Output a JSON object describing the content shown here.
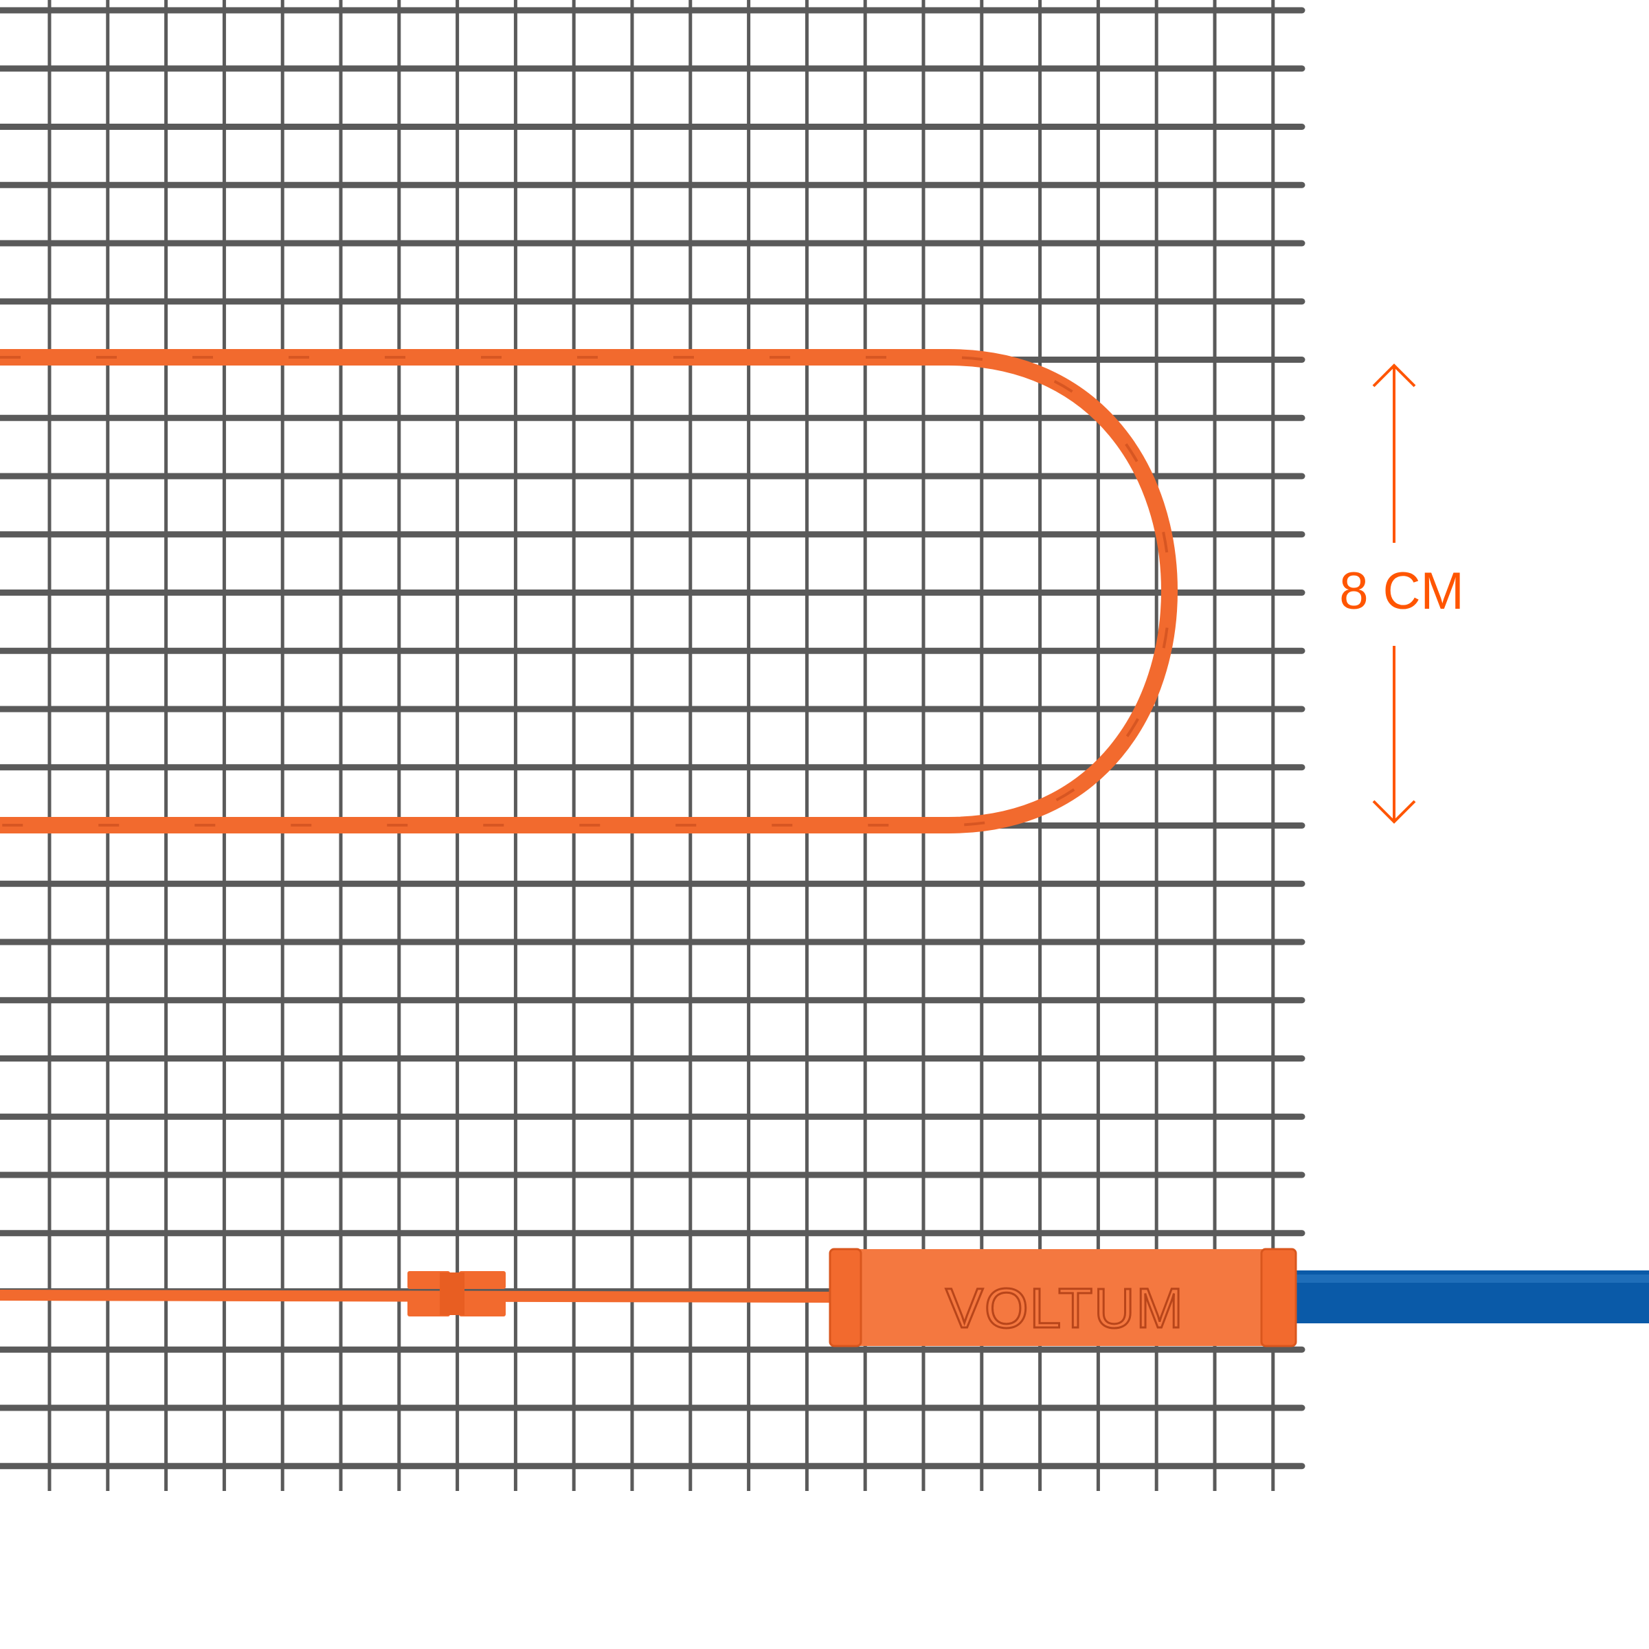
{
  "dimension_label": "8 CM",
  "brand_logo_text": "VOLTUM",
  "colors": {
    "cable": "#f26a2e",
    "accent": "#ff5500",
    "grid": "#5a5a5a",
    "supply_cable": "#0a5aa8",
    "background": "#ffffff"
  },
  "icons": [
    "arrow-up-icon",
    "arrow-down-icon"
  ]
}
